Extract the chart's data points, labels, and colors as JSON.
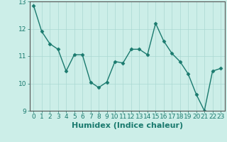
{
  "x": [
    0,
    1,
    2,
    3,
    4,
    5,
    6,
    7,
    8,
    9,
    10,
    11,
    12,
    13,
    14,
    15,
    16,
    17,
    18,
    19,
    20,
    21,
    22,
    23
  ],
  "y": [
    12.85,
    11.9,
    11.45,
    11.25,
    10.45,
    11.05,
    11.05,
    10.05,
    9.85,
    10.05,
    10.8,
    10.75,
    11.25,
    11.25,
    11.05,
    12.2,
    11.55,
    11.1,
    10.8,
    10.35,
    9.6,
    9.0,
    10.45,
    10.55
  ],
  "line_color": "#1a7a6e",
  "marker": "D",
  "marker_size": 2.5,
  "bg_color": "#cceee8",
  "grid_color": "#aad8d2",
  "xlabel": "Humidex (Indice chaleur)",
  "ylim": [
    9,
    13
  ],
  "xlim": [
    -0.5,
    23.5
  ],
  "yticks": [
    9,
    10,
    11,
    12,
    13
  ],
  "xticks": [
    0,
    1,
    2,
    3,
    4,
    5,
    6,
    7,
    8,
    9,
    10,
    11,
    12,
    13,
    14,
    15,
    16,
    17,
    18,
    19,
    20,
    21,
    22,
    23
  ],
  "tick_label_fontsize": 6.5,
  "xlabel_fontsize": 8,
  "line_width": 1.0,
  "tick_color": "#1a7a6e",
  "axis_color": "#555555"
}
